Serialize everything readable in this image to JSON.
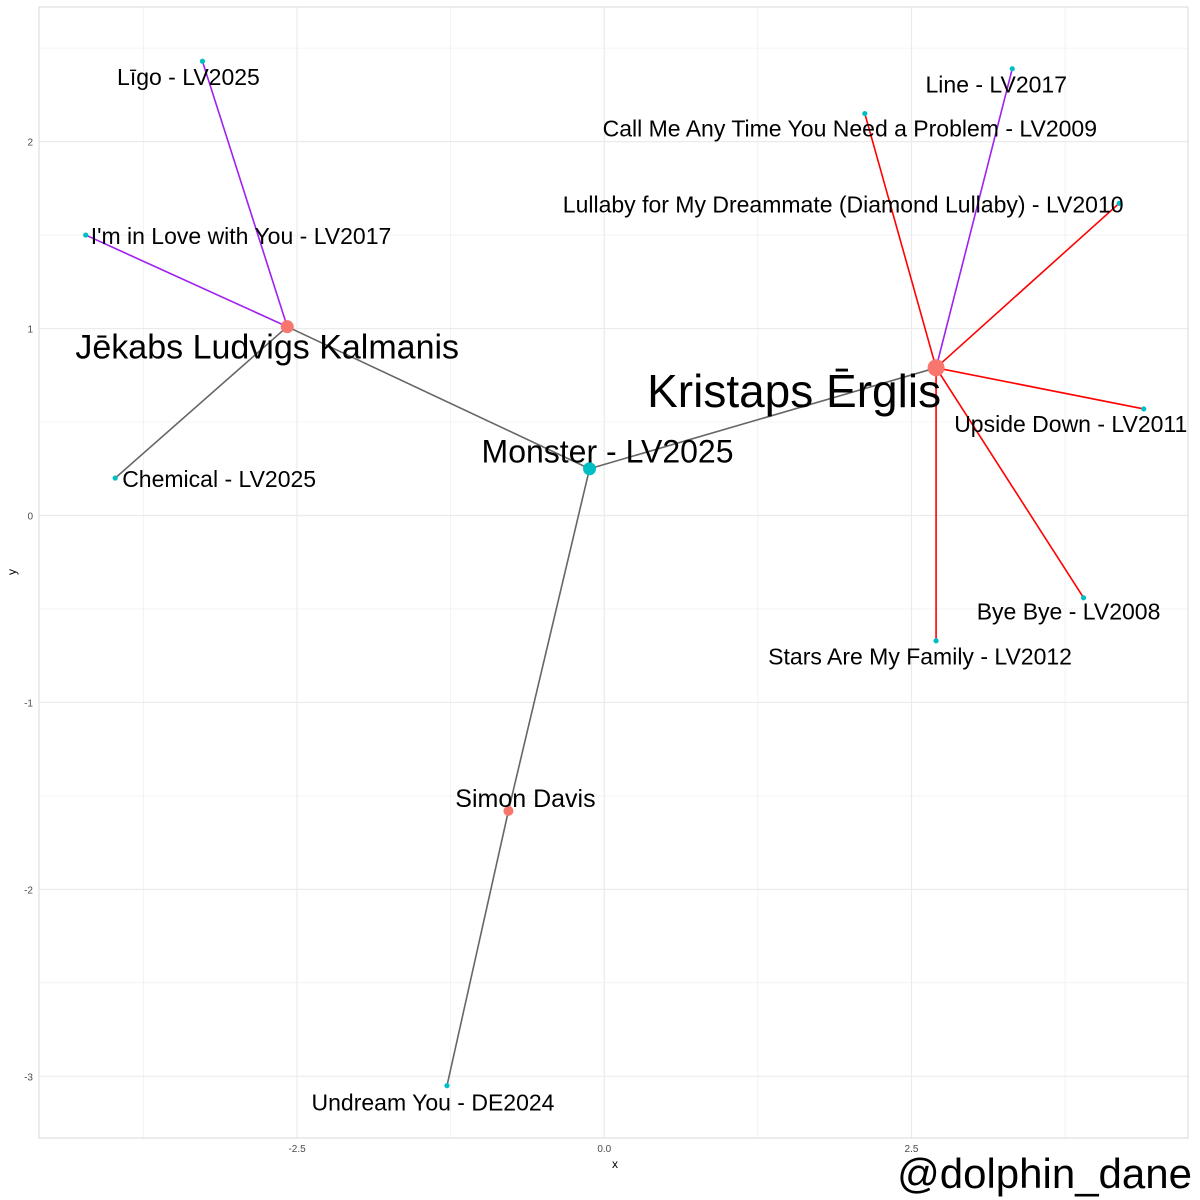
{
  "credit": "@dolphin_dane",
  "chart_data": {
    "type": "network",
    "xlabel": "x",
    "ylabel": "y",
    "xlim": [
      -4.6,
      4.75
    ],
    "ylim": [
      -3.33,
      2.72
    ],
    "grid": true,
    "x_ticks": [
      {
        "value": -2.5,
        "label": "-2.5"
      },
      {
        "value": 0.0,
        "label": "0.0"
      },
      {
        "value": 2.5,
        "label": "2.5"
      }
    ],
    "y_ticks": [
      {
        "value": -3,
        "label": "-3"
      },
      {
        "value": -2,
        "label": "-2"
      },
      {
        "value": -1,
        "label": "-1"
      },
      {
        "value": 0,
        "label": "0"
      },
      {
        "value": 1,
        "label": "1"
      },
      {
        "value": 2,
        "label": "2"
      }
    ],
    "colors": {
      "artist": "#F8766D",
      "song": "#00BFC4",
      "edge_grey": "#666666",
      "edge_red": "#FF0000",
      "edge_purple": "#A020F0",
      "grid": "#EBEBEB",
      "panel_border": "#D9D9D9"
    },
    "nodes": [
      {
        "id": "monster",
        "label": "Monster - LV2025",
        "kind": "song",
        "x": -0.12,
        "y": 0.25,
        "size": "large"
      },
      {
        "id": "jekabs",
        "label": "Jēkabs Ludvigs Kalmanis",
        "kind": "artist",
        "x": -2.58,
        "y": 1.01,
        "size": "large"
      },
      {
        "id": "kristaps",
        "label": "Kristaps Ērglis",
        "kind": "artist",
        "x": 2.7,
        "y": 0.79,
        "size": "xlarge"
      },
      {
        "id": "simon",
        "label": "Simon Davis",
        "kind": "artist",
        "x": -0.78,
        "y": -1.58,
        "size": "medium"
      },
      {
        "id": "undream",
        "label": "Undream You - DE2024",
        "kind": "song",
        "x": -1.28,
        "y": -3.05,
        "size": "small"
      },
      {
        "id": "chemical",
        "label": "Chemical - LV2025",
        "kind": "song",
        "x": -3.98,
        "y": 0.2,
        "size": "small"
      },
      {
        "id": "inlove",
        "label": "I'm in Love with You - LV2017",
        "kind": "song",
        "x": -4.22,
        "y": 1.5,
        "size": "small"
      },
      {
        "id": "ligo",
        "label": "Līgo - LV2025",
        "kind": "song",
        "x": -3.27,
        "y": 2.43,
        "size": "small"
      },
      {
        "id": "line",
        "label": "Line - LV2017",
        "kind": "song",
        "x": 3.32,
        "y": 2.39,
        "size": "small"
      },
      {
        "id": "callme",
        "label": "Call Me Any Time You Need a Problem - LV2009",
        "kind": "song",
        "x": 2.12,
        "y": 2.15,
        "size": "small"
      },
      {
        "id": "lullaby",
        "label": "Lullaby for My Dreammate (Diamond Lullaby) - LV2010",
        "kind": "song",
        "x": 4.19,
        "y": 1.67,
        "size": "small"
      },
      {
        "id": "upside",
        "label": "Upside Down - LV2011",
        "kind": "song",
        "x": 4.39,
        "y": 0.57,
        "size": "small"
      },
      {
        "id": "byebye",
        "label": "Bye Bye - LV2008",
        "kind": "song",
        "x": 3.9,
        "y": -0.44,
        "size": "small"
      },
      {
        "id": "stars",
        "label": "Stars Are My Family - LV2012",
        "kind": "song",
        "x": 2.7,
        "y": -0.67,
        "size": "small"
      }
    ],
    "edges": [
      {
        "from": "monster",
        "to": "jekabs",
        "color": "grey"
      },
      {
        "from": "monster",
        "to": "kristaps",
        "color": "grey"
      },
      {
        "from": "monster",
        "to": "simon",
        "color": "grey"
      },
      {
        "from": "simon",
        "to": "undream",
        "color": "grey"
      },
      {
        "from": "jekabs",
        "to": "chemical",
        "color": "grey"
      },
      {
        "from": "jekabs",
        "to": "inlove",
        "color": "purple"
      },
      {
        "from": "jekabs",
        "to": "ligo",
        "color": "purple"
      },
      {
        "from": "kristaps",
        "to": "line",
        "color": "purple"
      },
      {
        "from": "kristaps",
        "to": "callme",
        "color": "red"
      },
      {
        "from": "kristaps",
        "to": "lullaby",
        "color": "red"
      },
      {
        "from": "kristaps",
        "to": "upside",
        "color": "red"
      },
      {
        "from": "kristaps",
        "to": "byebye",
        "color": "red"
      },
      {
        "from": "kristaps",
        "to": "stars",
        "color": "red"
      }
    ]
  }
}
